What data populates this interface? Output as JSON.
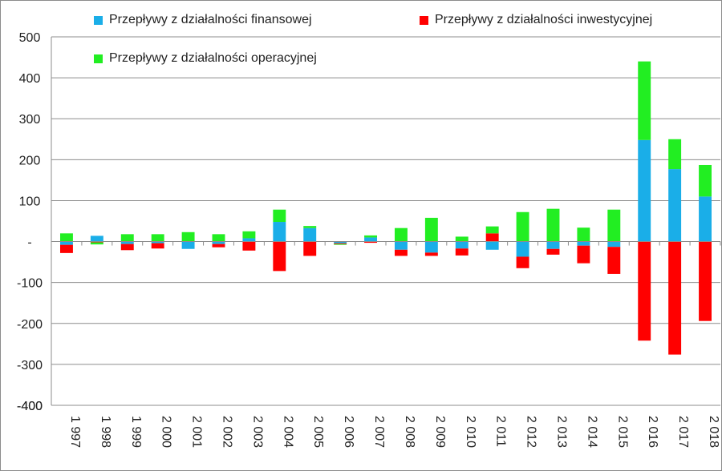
{
  "chart_data": {
    "type": "bar",
    "stacked": true,
    "categories": [
      "1 997",
      "1 998",
      "1 999",
      "2 000",
      "2 001",
      "2 002",
      "2 003",
      "2 004",
      "2 005",
      "2 006",
      "2 007",
      "2 008",
      "2 009",
      "2 010",
      "2 011",
      "2 012",
      "2 013",
      "2 014",
      "2 015",
      "2 016",
      "2 017",
      "2 018"
    ],
    "y_ticks": [
      "500",
      "400",
      "300",
      "200",
      "100",
      "-",
      "-100",
      "-200",
      "-300",
      "-400"
    ],
    "ylim": [
      -400,
      500
    ],
    "grid": "horizontal",
    "legend_position": "top",
    "series": [
      {
        "name": "Przepływy z działalności finansowej",
        "color": "#1aaee8",
        "values": [
          -8,
          14,
          -6,
          -4,
          -18,
          -6,
          8,
          48,
          33,
          -4,
          10,
          -20,
          -27,
          -17,
          -20,
          -37,
          -18,
          -10,
          -13,
          248,
          177,
          110
        ]
      },
      {
        "name": "Przepływy z działalności inwestycyjnej",
        "color": "#ff0000",
        "values": [
          -20,
          -2,
          -15,
          -13,
          0,
          -8,
          -22,
          -72,
          -35,
          -2,
          -3,
          -15,
          -8,
          -17,
          20,
          -28,
          -14,
          -43,
          -66,
          -242,
          -276,
          -194
        ]
      },
      {
        "name": "Przepływy z działalności operacyjnej",
        "color": "#22ee22",
        "values": [
          20,
          -5,
          18,
          18,
          23,
          18,
          17,
          30,
          5,
          -1,
          5,
          33,
          58,
          12,
          17,
          72,
          80,
          34,
          78,
          192,
          73,
          77
        ]
      }
    ]
  }
}
